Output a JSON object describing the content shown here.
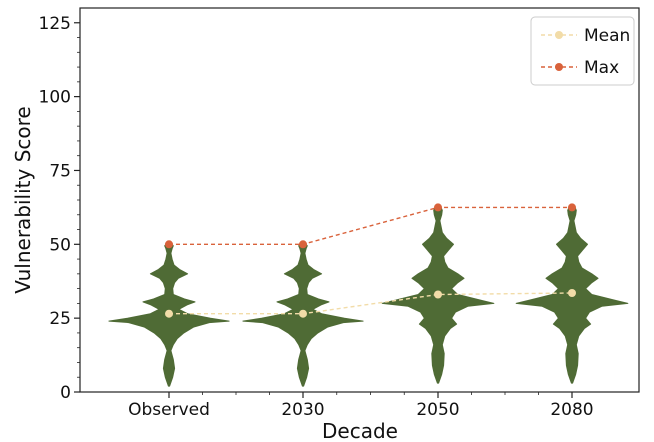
{
  "chart_data": {
    "type": "violin",
    "xlabel": "Decade",
    "ylabel": "Vulnerability Score",
    "ylim": [
      0,
      130
    ],
    "yticks": [
      0,
      25,
      50,
      75,
      100,
      125
    ],
    "grid": false,
    "legend_position": "top-right",
    "categories": [
      "Observed",
      "2030",
      "2050",
      "2080"
    ],
    "series": [
      {
        "name": "Mean",
        "values": [
          26.5,
          26.5,
          33,
          33.5
        ],
        "color": "#f2dca8",
        "line": "dashed"
      },
      {
        "name": "Max",
        "values": [
          50,
          50,
          62.5,
          62.5
        ],
        "color": "#d9623b",
        "line": "dashed"
      }
    ],
    "violins": [
      {
        "category": "Observed",
        "min": 2,
        "max": 50,
        "profile": [
          [
            2,
            1
          ],
          [
            5,
            6
          ],
          [
            8,
            9
          ],
          [
            11,
            7
          ],
          [
            14,
            3
          ],
          [
            16,
            7
          ],
          [
            18,
            13
          ],
          [
            20,
            24
          ],
          [
            22,
            40
          ],
          [
            23.5,
            65
          ],
          [
            24,
            97
          ],
          [
            25,
            67
          ],
          [
            26.5,
            30
          ],
          [
            28,
            16
          ],
          [
            29.5,
            29
          ],
          [
            30.5,
            42
          ],
          [
            31.5,
            25
          ],
          [
            33,
            7
          ],
          [
            35,
            6
          ],
          [
            37,
            9
          ],
          [
            38.5,
            15
          ],
          [
            40,
            30
          ],
          [
            41.5,
            17
          ],
          [
            43,
            8
          ],
          [
            45,
            5
          ],
          [
            47,
            3
          ],
          [
            48.5,
            5
          ],
          [
            49.5,
            7
          ],
          [
            50,
            5
          ]
        ]
      },
      {
        "category": "2030",
        "min": 2,
        "max": 50,
        "profile": [
          [
            2,
            1
          ],
          [
            5,
            6
          ],
          [
            8,
            9
          ],
          [
            11,
            7
          ],
          [
            14,
            3
          ],
          [
            16,
            7
          ],
          [
            18,
            13
          ],
          [
            20,
            24
          ],
          [
            22,
            40
          ],
          [
            23.5,
            65
          ],
          [
            24,
            97
          ],
          [
            25,
            67
          ],
          [
            26.5,
            30
          ],
          [
            28,
            16
          ],
          [
            29.5,
            29
          ],
          [
            30.5,
            42
          ],
          [
            31.5,
            25
          ],
          [
            33,
            7
          ],
          [
            35,
            6
          ],
          [
            37,
            9
          ],
          [
            38.5,
            15
          ],
          [
            40,
            30
          ],
          [
            41.5,
            17
          ],
          [
            43,
            8
          ],
          [
            45,
            5
          ],
          [
            47,
            3
          ],
          [
            48.5,
            5
          ],
          [
            49.5,
            7
          ],
          [
            50,
            5
          ]
        ]
      },
      {
        "category": "2050",
        "min": 3,
        "max": 62.5,
        "profile": [
          [
            3,
            1
          ],
          [
            6,
            6
          ],
          [
            9,
            9
          ],
          [
            13,
            10
          ],
          [
            16,
            7
          ],
          [
            19,
            11
          ],
          [
            21.5,
            20
          ],
          [
            23,
            30
          ],
          [
            25,
            22
          ],
          [
            27,
            28
          ],
          [
            29,
            48
          ],
          [
            30,
            90
          ],
          [
            31,
            70
          ],
          [
            33,
            32
          ],
          [
            35,
            22
          ],
          [
            37,
            32
          ],
          [
            38.5,
            42
          ],
          [
            40,
            32
          ],
          [
            42,
            16
          ],
          [
            44,
            11
          ],
          [
            46,
            9
          ],
          [
            48,
            17
          ],
          [
            50,
            25
          ],
          [
            52,
            14
          ],
          [
            54,
            7
          ],
          [
            56,
            5
          ],
          [
            58,
            3
          ],
          [
            60,
            6
          ],
          [
            61.5,
            7
          ],
          [
            62.5,
            5
          ]
        ]
      },
      {
        "category": "2080",
        "min": 3,
        "max": 62.5,
        "profile": [
          [
            3,
            1
          ],
          [
            6,
            6
          ],
          [
            9,
            9
          ],
          [
            13,
            10
          ],
          [
            16,
            7
          ],
          [
            19,
            11
          ],
          [
            21.5,
            20
          ],
          [
            23,
            30
          ],
          [
            25,
            22
          ],
          [
            27,
            28
          ],
          [
            29,
            48
          ],
          [
            30,
            90
          ],
          [
            31,
            70
          ],
          [
            33,
            32
          ],
          [
            35,
            22
          ],
          [
            37,
            32
          ],
          [
            38.5,
            42
          ],
          [
            40,
            32
          ],
          [
            42,
            16
          ],
          [
            44,
            11
          ],
          [
            46,
            9
          ],
          [
            48,
            17
          ],
          [
            50,
            25
          ],
          [
            52,
            14
          ],
          [
            54,
            7
          ],
          [
            56,
            5
          ],
          [
            58,
            3
          ],
          [
            60,
            6
          ],
          [
            61.5,
            7
          ],
          [
            62.5,
            5
          ]
        ]
      }
    ],
    "violin_color": "#4f6b35"
  }
}
